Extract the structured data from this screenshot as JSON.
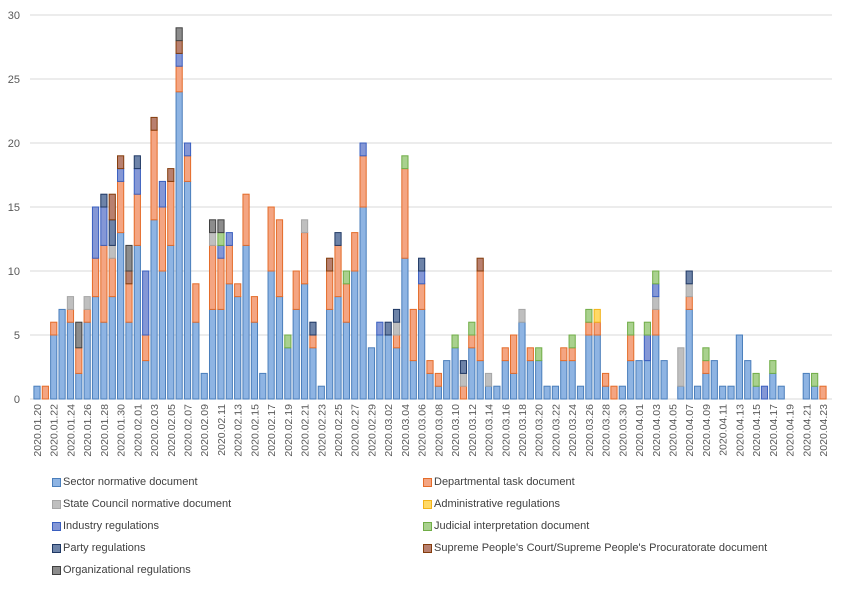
{
  "chart_data": {
    "type": "bar",
    "stacked": true,
    "title": "",
    "xlabel": "",
    "ylabel": "",
    "ylim": [
      0,
      30
    ],
    "yticks": [
      0,
      5,
      10,
      15,
      20,
      25,
      30
    ],
    "grid": true,
    "legend_position": "bottom",
    "categories": [
      "2020.01.20",
      "2020.01.21",
      "2020.01.22",
      "2020.01.23",
      "2020.01.24",
      "2020.01.25",
      "2020.01.26",
      "2020.01.27",
      "2020.01.28",
      "2020.01.29",
      "2020.01.30",
      "2020.01.31",
      "2020.02.01",
      "2020.02.02",
      "2020.02.03",
      "2020.02.04",
      "2020.02.05",
      "2020.02.06",
      "2020.02.07",
      "2020.02.08",
      "2020.02.09",
      "2020.02.10",
      "2020.02.11",
      "2020.02.12",
      "2020.02.13",
      "2020.02.14",
      "2020.02.15",
      "2020.02.16",
      "2020.02.17",
      "2020.02.18",
      "2020.02.19",
      "2020.02.20",
      "2020.02.21",
      "2020.02.22",
      "2020.02.23",
      "2020.02.24",
      "2020.02.25",
      "2020.02.26",
      "2020.02.27",
      "2020.02.28",
      "2020.02.29",
      "2020.03.01",
      "2020.03.02",
      "2020.03.03",
      "2020.03.04",
      "2020.03.05",
      "2020.03.06",
      "2020.03.07",
      "2020.03.08",
      "2020.03.09",
      "2020.03.10",
      "2020.03.11",
      "2020.03.12",
      "2020.03.13",
      "2020.03.14",
      "2020.03.15",
      "2020.03.16",
      "2020.03.17",
      "2020.03.18",
      "2020.03.19",
      "2020.03.20",
      "2020.03.21",
      "2020.03.22",
      "2020.03.23",
      "2020.03.24",
      "2020.03.25",
      "2020.03.26",
      "2020.03.27",
      "2020.03.28",
      "2020.03.29",
      "2020.03.30",
      "2020.03.31",
      "2020.04.01",
      "2020.04.02",
      "2020.04.03",
      "2020.04.04",
      "2020.04.05",
      "2020.04.06",
      "2020.04.07",
      "2020.04.08",
      "2020.04.09",
      "2020.04.10",
      "2020.04.11",
      "2020.04.12",
      "2020.04.13",
      "2020.04.14",
      "2020.04.15",
      "2020.04.16",
      "2020.04.17",
      "2020.04.18",
      "2020.04.19",
      "2020.04.20",
      "2020.04.21",
      "2020.04.22",
      "2020.04.23"
    ],
    "series": [
      {
        "name": "Sector normative document",
        "fill": "#8eb4e3",
        "stroke": "#4a7ebb",
        "values": [
          1,
          0,
          5,
          7,
          6,
          2,
          6,
          8,
          6,
          8,
          13,
          6,
          12,
          3,
          14,
          10,
          12,
          24,
          17,
          6,
          2,
          7,
          7,
          9,
          8,
          12,
          6,
          2,
          10,
          8,
          4,
          7,
          9,
          4,
          1,
          7,
          8,
          6,
          10,
          15,
          4,
          5,
          5,
          4,
          11,
          3,
          7,
          2,
          1,
          3,
          4,
          0,
          4,
          3,
          1,
          1,
          3,
          2,
          6,
          3,
          3,
          1,
          1,
          3,
          3,
          1,
          5,
          5,
          1,
          0,
          1,
          3,
          3,
          3,
          5,
          3,
          0,
          1,
          7,
          1,
          2,
          3,
          1,
          1,
          5,
          3,
          1,
          0,
          2,
          1,
          0,
          0,
          2,
          1,
          0
        ]
      },
      {
        "name": "Departmental task document",
        "fill": "#f4a582",
        "stroke": "#e46c2a",
        "values": [
          0,
          1,
          1,
          0,
          1,
          2,
          1,
          3,
          6,
          3,
          4,
          3,
          4,
          2,
          7,
          5,
          5,
          2,
          2,
          3,
          0,
          5,
          4,
          3,
          1,
          4,
          2,
          0,
          5,
          6,
          0,
          3,
          4,
          1,
          0,
          3,
          4,
          3,
          3,
          4,
          0,
          0,
          0,
          1,
          7,
          4,
          2,
          1,
          1,
          0,
          0,
          1,
          1,
          7,
          0,
          0,
          1,
          3,
          0,
          1,
          0,
          0,
          0,
          1,
          1,
          0,
          1,
          1,
          1,
          1,
          0,
          2,
          0,
          0,
          2,
          0,
          0,
          0,
          1,
          0,
          1,
          0,
          0,
          0,
          0,
          0,
          0,
          0,
          0,
          0,
          0,
          0,
          0,
          0,
          1
        ]
      },
      {
        "name": "State Council normative document",
        "fill": "#bfbfbf",
        "stroke": "#a6a6a6",
        "values": [
          0,
          0,
          0,
          0,
          1,
          0,
          1,
          0,
          0,
          1,
          0,
          0,
          0,
          0,
          0,
          0,
          0,
          0,
          0,
          0,
          0,
          1,
          0,
          0,
          0,
          0,
          0,
          0,
          0,
          0,
          0,
          0,
          1,
          0,
          0,
          0,
          0,
          0,
          0,
          0,
          0,
          0,
          0,
          1,
          0,
          0,
          0,
          0,
          0,
          0,
          0,
          1,
          0,
          0,
          1,
          0,
          0,
          0,
          1,
          0,
          0,
          0,
          0,
          0,
          0,
          0,
          0,
          0,
          0,
          0,
          0,
          0,
          0,
          0,
          1,
          0,
          0,
          3,
          1,
          0,
          0,
          0,
          0,
          0,
          0,
          0,
          0,
          0,
          0,
          0,
          0,
          0,
          0,
          0,
          0
        ]
      },
      {
        "name": "Administrative regulations",
        "fill": "#ffd966",
        "stroke": "#f2b31a",
        "values": [
          0,
          0,
          0,
          0,
          0,
          0,
          0,
          0,
          0,
          0,
          0,
          0,
          0,
          0,
          0,
          0,
          0,
          0,
          0,
          0,
          0,
          0,
          0,
          0,
          0,
          0,
          0,
          0,
          0,
          0,
          0,
          0,
          0,
          0,
          0,
          0,
          0,
          0,
          0,
          0,
          0,
          0,
          0,
          0,
          0,
          0,
          0,
          0,
          0,
          0,
          0,
          0,
          0,
          0,
          0,
          0,
          0,
          0,
          0,
          0,
          0,
          0,
          0,
          0,
          0,
          0,
          0,
          1,
          0,
          0,
          0,
          0,
          0,
          0,
          0,
          0,
          0,
          0,
          0,
          0,
          0,
          0,
          0,
          0,
          0,
          0,
          0,
          0,
          0,
          0,
          0,
          0,
          0,
          0,
          0
        ]
      },
      {
        "name": "Industry regulations",
        "fill": "#8497d6",
        "stroke": "#3a5fbf",
        "values": [
          0,
          0,
          0,
          0,
          0,
          0,
          0,
          4,
          3,
          0,
          1,
          0,
          2,
          5,
          0,
          2,
          0,
          1,
          1,
          0,
          0,
          0,
          1,
          1,
          0,
          0,
          0,
          0,
          0,
          0,
          0,
          0,
          0,
          0,
          0,
          0,
          0,
          0,
          0,
          1,
          0,
          1,
          0,
          0,
          0,
          0,
          1,
          0,
          0,
          0,
          0,
          0,
          0,
          0,
          0,
          0,
          0,
          0,
          0,
          0,
          0,
          0,
          0,
          0,
          0,
          0,
          0,
          0,
          0,
          0,
          0,
          0,
          0,
          2,
          1,
          0,
          0,
          0,
          0,
          0,
          0,
          0,
          0,
          0,
          0,
          0,
          0,
          1,
          0,
          0,
          0,
          0,
          0,
          0,
          0
        ]
      },
      {
        "name": "Judicial interpretation document",
        "fill": "#a9d18e",
        "stroke": "#70ad47",
        "values": [
          0,
          0,
          0,
          0,
          0,
          0,
          0,
          0,
          0,
          0,
          0,
          0,
          0,
          0,
          0,
          0,
          0,
          0,
          0,
          0,
          0,
          0,
          1,
          0,
          0,
          0,
          0,
          0,
          0,
          0,
          1,
          0,
          0,
          0,
          0,
          0,
          0,
          1,
          0,
          0,
          0,
          0,
          0,
          0,
          1,
          0,
          0,
          0,
          0,
          0,
          1,
          0,
          1,
          0,
          0,
          0,
          0,
          0,
          0,
          0,
          1,
          0,
          0,
          0,
          1,
          0,
          1,
          0,
          0,
          0,
          0,
          1,
          0,
          1,
          1,
          0,
          0,
          0,
          0,
          0,
          1,
          0,
          0,
          0,
          0,
          0,
          1,
          0,
          1,
          0,
          0,
          0,
          0,
          1,
          0
        ]
      },
      {
        "name": "Party regulations",
        "fill": "#6d83a8",
        "stroke": "#1f3864",
        "values": [
          0,
          0,
          0,
          0,
          0,
          0,
          0,
          0,
          1,
          2,
          0,
          0,
          1,
          0,
          0,
          0,
          0,
          0,
          0,
          0,
          0,
          0,
          0,
          0,
          0,
          0,
          0,
          0,
          0,
          0,
          0,
          0,
          0,
          1,
          0,
          0,
          1,
          0,
          0,
          0,
          0,
          0,
          1,
          1,
          0,
          0,
          1,
          0,
          0,
          0,
          0,
          1,
          0,
          0,
          0,
          0,
          0,
          0,
          0,
          0,
          0,
          0,
          0,
          0,
          0,
          0,
          0,
          0,
          0,
          0,
          0,
          0,
          0,
          0,
          0,
          0,
          0,
          0,
          1,
          0,
          0,
          0,
          0,
          0,
          0,
          0,
          0,
          0,
          0,
          0,
          0,
          0,
          0,
          0,
          0
        ]
      },
      {
        "name": "Supreme People's Court/Supreme People's Procuratorate document",
        "fill": "#b8806f",
        "stroke": "#843c0c",
        "values": [
          0,
          0,
          0,
          0,
          0,
          0,
          0,
          0,
          0,
          2,
          1,
          1,
          0,
          0,
          1,
          0,
          1,
          1,
          0,
          0,
          0,
          0,
          0,
          0,
          0,
          0,
          0,
          0,
          0,
          0,
          0,
          0,
          0,
          0,
          0,
          1,
          0,
          0,
          0,
          0,
          0,
          0,
          0,
          0,
          0,
          0,
          0,
          0,
          0,
          0,
          0,
          0,
          0,
          1,
          0,
          0,
          0,
          0,
          0,
          0,
          0,
          0,
          0,
          0,
          0,
          0,
          0,
          0,
          0,
          0,
          0,
          0,
          0,
          0,
          0,
          0,
          0,
          0,
          0,
          0,
          0,
          0,
          0,
          0,
          0,
          0,
          0,
          0,
          0,
          0,
          0,
          0,
          0,
          0,
          0
        ]
      },
      {
        "name": "Organizational regulations",
        "fill": "#8c8c8c",
        "stroke": "#404040",
        "values": [
          0,
          0,
          0,
          0,
          0,
          2,
          0,
          0,
          0,
          0,
          0,
          2,
          0,
          0,
          0,
          0,
          0,
          1,
          0,
          0,
          0,
          1,
          1,
          0,
          0,
          0,
          0,
          0,
          0,
          0,
          0,
          0,
          0,
          0,
          0,
          0,
          0,
          0,
          0,
          0,
          0,
          0,
          0,
          0,
          0,
          0,
          0,
          0,
          0,
          0,
          0,
          0,
          0,
          0,
          0,
          0,
          0,
          0,
          0,
          0,
          0,
          0,
          0,
          0,
          0,
          0,
          0,
          0,
          0,
          0,
          0,
          0,
          0,
          0,
          0,
          0,
          0,
          0,
          0,
          0,
          0,
          0,
          0,
          0,
          0,
          0,
          0,
          0,
          0,
          0,
          0,
          0,
          0,
          0,
          0
        ]
      }
    ]
  }
}
